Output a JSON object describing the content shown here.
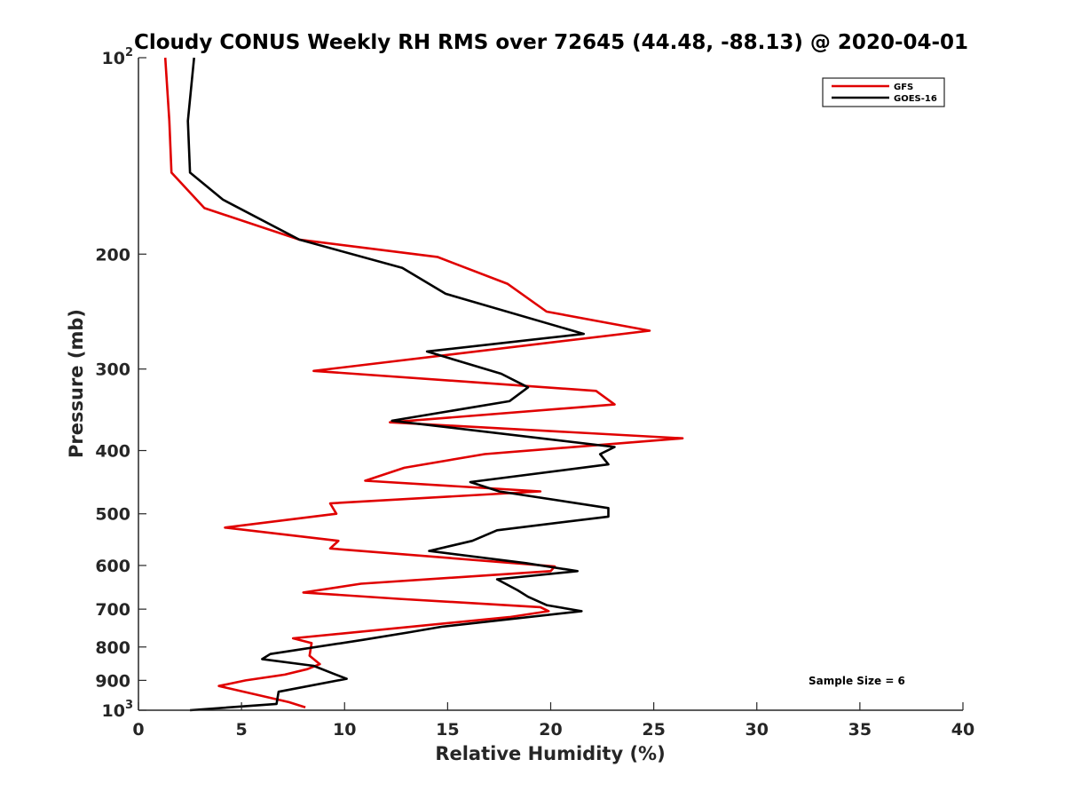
{
  "chart_data": {
    "type": "line",
    "title": "Cloudy CONUS Weekly RH RMS over 72645 (44.48, -88.13) @ 2020-04-01",
    "xlabel": "Relative Humidity (%)",
    "ylabel": "Pressure (mb)",
    "xlim": [
      0,
      40
    ],
    "ylim": [
      100,
      1000
    ],
    "y_scale": "log",
    "y_reversed": true,
    "grid": false,
    "legend_position": "top-right",
    "x_ticks": [
      "0",
      "5",
      "10",
      "15",
      "20",
      "25",
      "30",
      "35",
      "40"
    ],
    "y_ticks": [
      {
        "value": 100,
        "base": "10",
        "exp": "2"
      },
      {
        "value": 200,
        "base": "200",
        "exp": ""
      },
      {
        "value": 300,
        "base": "300",
        "exp": ""
      },
      {
        "value": 400,
        "base": "400",
        "exp": ""
      },
      {
        "value": 500,
        "base": "500",
        "exp": ""
      },
      {
        "value": 600,
        "base": "600",
        "exp": ""
      },
      {
        "value": 700,
        "base": "700",
        "exp": ""
      },
      {
        "value": 800,
        "base": "800",
        "exp": ""
      },
      {
        "value": 900,
        "base": "900",
        "exp": ""
      },
      {
        "value": 1000,
        "base": "10",
        "exp": "3"
      }
    ],
    "annotation": "Sample Size = 6",
    "series": [
      {
        "name": "GFS",
        "color": "#e00000",
        "points": [
          [
            1.3,
            100
          ],
          [
            1.5,
            125
          ],
          [
            1.6,
            150
          ],
          [
            3.2,
            170
          ],
          [
            7.8,
            190
          ],
          [
            14.5,
            202
          ],
          [
            17.9,
            222
          ],
          [
            19.8,
            245
          ],
          [
            24.8,
            262
          ],
          [
            8.5,
            302
          ],
          [
            22.2,
            324
          ],
          [
            23.1,
            340
          ],
          [
            12.2,
            362
          ],
          [
            26.4,
            383
          ],
          [
            16.8,
            405
          ],
          [
            12.9,
            425
          ],
          [
            11.0,
            445
          ],
          [
            19.5,
            462
          ],
          [
            9.3,
            482
          ],
          [
            9.6,
            500
          ],
          [
            4.2,
            525
          ],
          [
            9.7,
            550
          ],
          [
            9.3,
            565
          ],
          [
            20.2,
            602
          ],
          [
            20.0,
            612
          ],
          [
            10.8,
            640
          ],
          [
            8.0,
            660
          ],
          [
            12.6,
            675
          ],
          [
            19.5,
            695
          ],
          [
            19.9,
            705
          ],
          [
            18.0,
            720
          ],
          [
            7.5,
            776
          ],
          [
            8.4,
            789
          ],
          [
            8.3,
            825
          ],
          [
            8.8,
            850
          ],
          [
            8.2,
            865
          ],
          [
            7.1,
            882
          ],
          [
            5.2,
            900
          ],
          [
            3.9,
            918
          ],
          [
            7.3,
            972
          ],
          [
            8.1,
            990
          ]
        ]
      },
      {
        "name": "GOES-16",
        "color": "#000000",
        "points": [
          [
            2.7,
            100
          ],
          [
            2.4,
            125
          ],
          [
            2.5,
            150
          ],
          [
            4.1,
            165
          ],
          [
            7.8,
            190
          ],
          [
            12.8,
            210
          ],
          [
            14.9,
            230
          ],
          [
            21.6,
            265
          ],
          [
            14.0,
            282
          ],
          [
            17.6,
            305
          ],
          [
            18.9,
            320
          ],
          [
            18.0,
            336
          ],
          [
            12.3,
            360
          ],
          [
            23.1,
            395
          ],
          [
            22.4,
            405
          ],
          [
            22.8,
            420
          ],
          [
            16.1,
            447
          ],
          [
            17.5,
            462
          ],
          [
            22.8,
            490
          ],
          [
            22.8,
            505
          ],
          [
            17.4,
            530
          ],
          [
            16.2,
            550
          ],
          [
            14.1,
            570
          ],
          [
            18.8,
            595
          ],
          [
            21.3,
            612
          ],
          [
            17.4,
            630
          ],
          [
            18.4,
            655
          ],
          [
            18.9,
            670
          ],
          [
            19.8,
            690
          ],
          [
            21.5,
            705
          ],
          [
            14.7,
            745
          ],
          [
            13.1,
            760
          ],
          [
            10.9,
            780
          ],
          [
            6.4,
            820
          ],
          [
            6.0,
            835
          ],
          [
            8.5,
            855
          ],
          [
            9.5,
            880
          ],
          [
            10.1,
            895
          ],
          [
            6.8,
            937
          ],
          [
            6.7,
            978
          ],
          [
            2.5,
            1000
          ]
        ]
      }
    ]
  }
}
